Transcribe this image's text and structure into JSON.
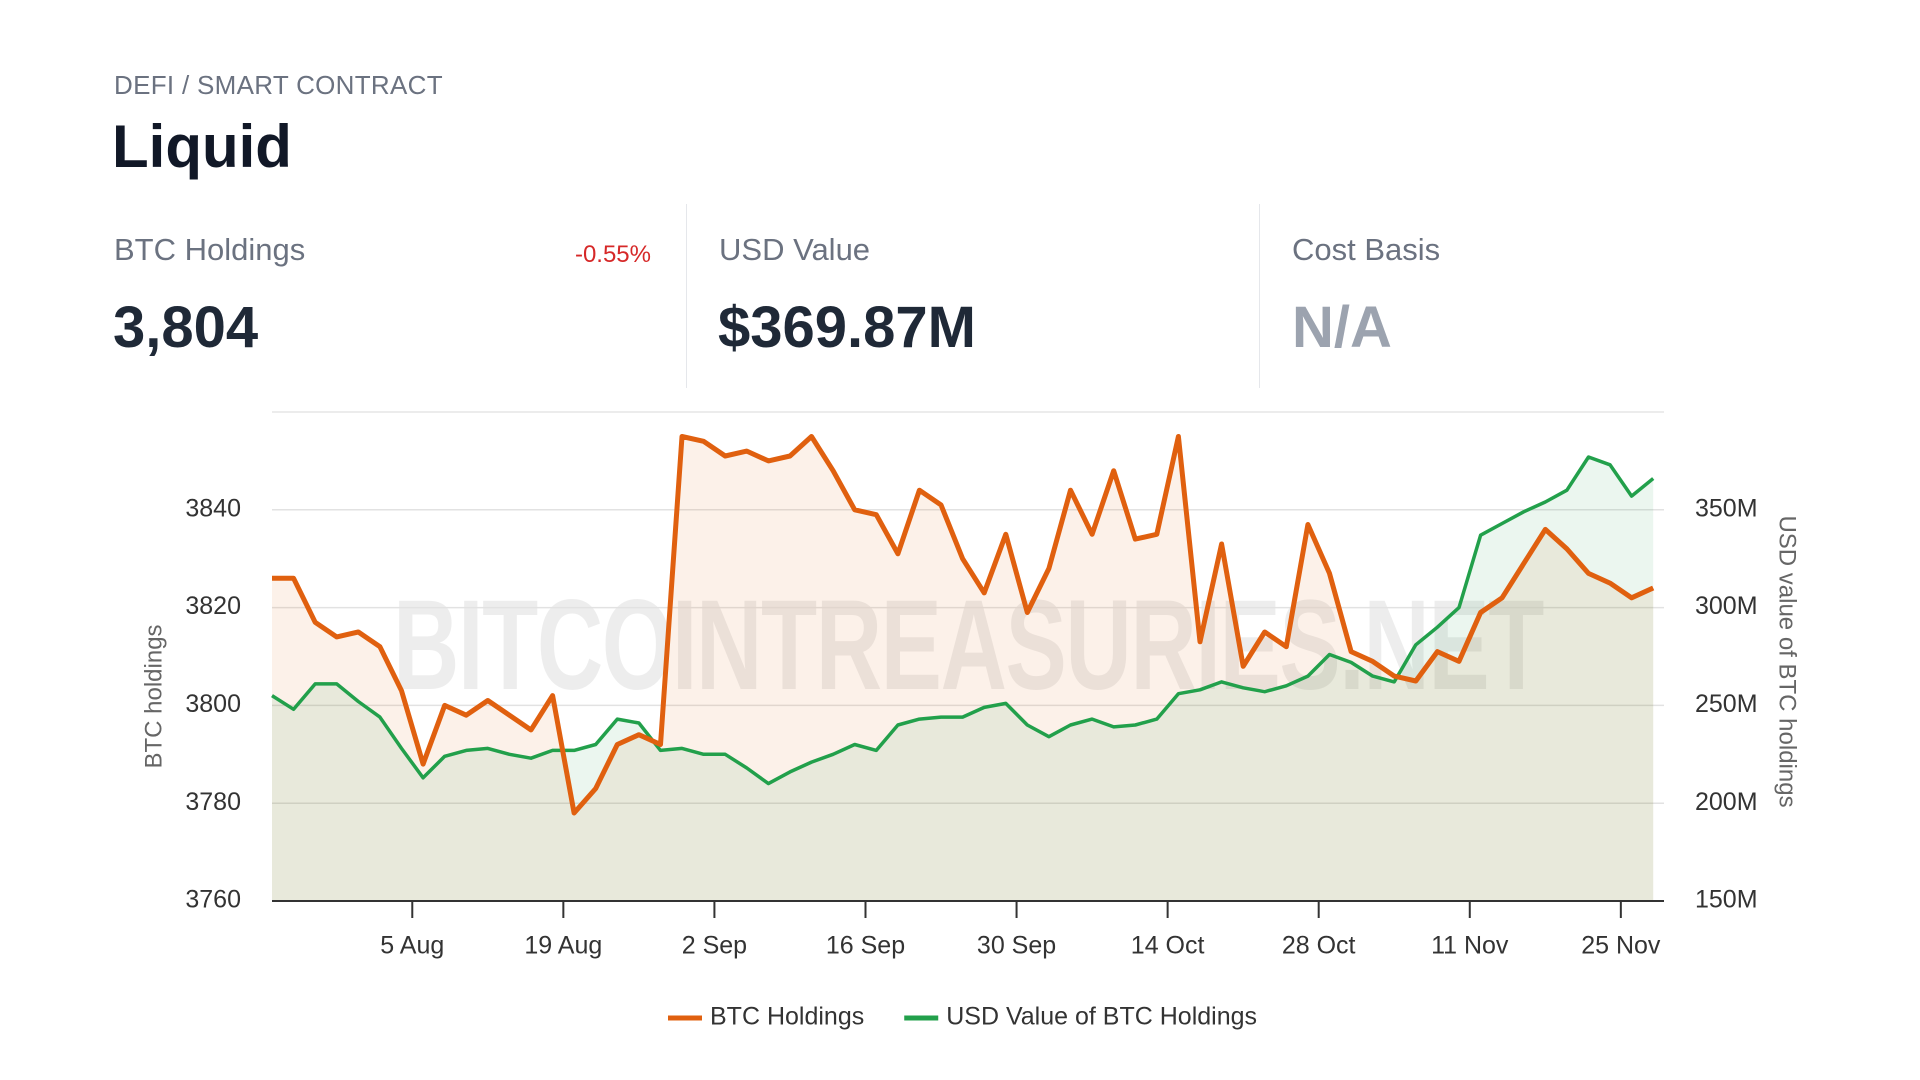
{
  "category": "DEFI / SMART CONTRACT",
  "title": "Liquid",
  "stats": [
    {
      "label": "BTC Holdings",
      "value": "3,804",
      "change": "-0.55%"
    },
    {
      "label": "USD Value",
      "value": "$369.87M"
    },
    {
      "label": "Cost Basis",
      "value": "N/A"
    }
  ],
  "chart_data": {
    "type": "line",
    "watermark": "BITCOINTREASURIES.NET",
    "y_label": "BTC holdings",
    "y2_label": "USD value of BTC holdings",
    "x": [
      "23 Jul",
      "25 Jul",
      "27 Jul",
      "29 Jul",
      "31 Jul",
      "2 Aug",
      "4 Aug",
      "6 Aug",
      "8 Aug",
      "10 Aug",
      "12 Aug",
      "14 Aug",
      "16 Aug",
      "18 Aug",
      "20 Aug",
      "22 Aug",
      "24 Aug",
      "26 Aug",
      "28 Aug",
      "30 Aug",
      "1 Sep",
      "3 Sep",
      "5 Sep",
      "7 Sep",
      "9 Sep",
      "11 Sep",
      "13 Sep",
      "15 Sep",
      "17 Sep",
      "19 Sep",
      "21 Sep",
      "23 Sep",
      "25 Sep",
      "27 Sep",
      "29 Sep",
      "1 Oct",
      "3 Oct",
      "5 Oct",
      "7 Oct",
      "9 Oct",
      "11 Oct",
      "13 Oct",
      "15 Oct",
      "17 Oct",
      "19 Oct",
      "21 Oct",
      "23 Oct",
      "25 Oct",
      "27 Oct",
      "29 Oct",
      "31 Oct",
      "2 Nov",
      "4 Nov",
      "6 Nov",
      "8 Nov",
      "10 Nov",
      "12 Nov",
      "14 Nov",
      "16 Nov",
      "18 Nov",
      "20 Nov",
      "22 Nov",
      "24 Nov",
      "26 Nov",
      "28 Nov"
    ],
    "xlim": [
      "23 Jul",
      "29 Nov"
    ],
    "xticks": [
      "5 Aug",
      "19 Aug",
      "2 Sep",
      "16 Sep",
      "30 Sep",
      "14 Oct",
      "28 Oct",
      "11 Nov",
      "25 Nov"
    ],
    "ylim": [
      3760,
      3860
    ],
    "yticks": [
      3760,
      3780,
      3800,
      3820,
      3840
    ],
    "y2lim": [
      150000000,
      400000000
    ],
    "y2ticks": [
      {
        "value": 150000000,
        "label": "150M"
      },
      {
        "value": 200000000,
        "label": "200M"
      },
      {
        "value": 250000000,
        "label": "250M"
      },
      {
        "value": 300000000,
        "label": "300M"
      },
      {
        "value": 350000000,
        "label": "350M"
      }
    ],
    "grid": true,
    "legend": "bottom",
    "series": [
      {
        "name": "BTC Holdings",
        "color": "#e0600f",
        "values": [
          3826,
          3826,
          3817,
          3814,
          3815,
          3812,
          3803,
          3788,
          3800,
          3798,
          3801,
          3798,
          3795,
          3802,
          3778,
          3783,
          3792,
          3794,
          3792,
          3855,
          3854,
          3851,
          3852,
          3850,
          3851,
          3855,
          3848,
          3840,
          3839,
          3831,
          3844,
          3841,
          3830,
          3823,
          3835,
          3819,
          3828,
          3844,
          3835,
          3848,
          3834,
          3835,
          3855,
          3813,
          3833,
          3808,
          3815,
          3812,
          3837,
          3827,
          3811,
          3809,
          3806,
          3805,
          3811,
          3809,
          3819,
          3822,
          3829,
          3836,
          3832,
          3827,
          3825,
          3822,
          3824
        ]
      },
      {
        "name": "USD Value of BTC Holdings",
        "color": "#22a04b",
        "axis": "y2",
        "values": [
          255000000,
          248000000,
          261000000,
          261000000,
          252000000,
          244000000,
          228000000,
          213000000,
          224000000,
          227000000,
          228000000,
          225000000,
          223000000,
          227000000,
          227000000,
          230000000,
          243000000,
          241000000,
          227000000,
          228000000,
          225000000,
          225000000,
          218000000,
          210000000,
          216000000,
          221000000,
          225000000,
          230000000,
          227000000,
          240000000,
          243000000,
          244000000,
          244000000,
          249000000,
          251000000,
          240000000,
          234000000,
          240000000,
          243000000,
          239000000,
          240000000,
          243000000,
          256000000,
          258000000,
          262000000,
          259000000,
          257000000,
          260000000,
          265000000,
          276000000,
          272000000,
          265000000,
          262000000,
          281000000,
          290000000,
          300000000,
          337000000,
          343000000,
          349000000,
          354000000,
          360000000,
          377000000,
          373000000,
          357000000,
          366000000
        ]
      }
    ]
  }
}
